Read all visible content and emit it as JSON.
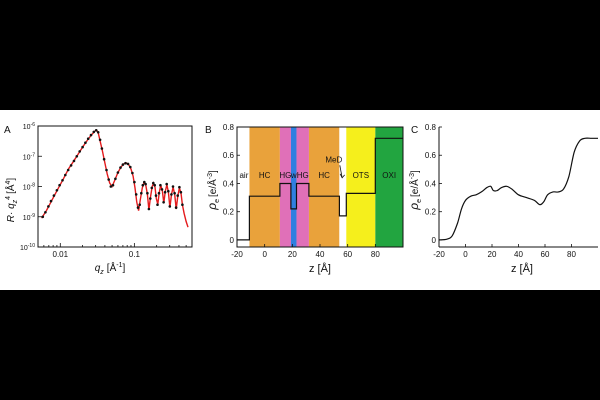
{
  "chart_data": [
    {
      "panel_label": "A",
      "type": "scatter",
      "title": "",
      "xlabel": "q",
      "xlabel_sub": "z",
      "xlabel_unit": "[Å",
      "xlabel_unit_sup": "-1",
      "xlabel_unit_close": "]",
      "ylabel": "R· q",
      "ylabel_sub": "z",
      "ylabel_sup": "4",
      "ylabel_unit": "[Å",
      "ylabel_unit_sup": "4",
      "ylabel_unit_close": "]",
      "x_scale": "log",
      "y_scale": "log",
      "xlim": [
        0.005,
        0.6
      ],
      "ylim": [
        1e-10,
        1e-06
      ],
      "xticks": [
        {
          "value": 0.01,
          "label": "0.01"
        },
        {
          "value": 0.1,
          "label": "0.1"
        }
      ],
      "yticks": [
        {
          "value": 1e-10,
          "mantissa": "10",
          "exp": "-10"
        },
        {
          "value": 1e-09,
          "mantissa": "10",
          "exp": "-9"
        },
        {
          "value": 1e-08,
          "mantissa": "10",
          "exp": "-8"
        },
        {
          "value": 1e-07,
          "mantissa": "10",
          "exp": "-7"
        },
        {
          "value": 1e-06,
          "mantissa": "10",
          "exp": "-6"
        }
      ],
      "series": [
        {
          "name": "data",
          "style": "points",
          "color": "#111111",
          "points": [
            [
              0.0058,
              1e-09
            ],
            [
              0.0063,
              1.4e-09
            ],
            [
              0.0069,
              2.2e-09
            ],
            [
              0.0075,
              3.3e-09
            ],
            [
              0.0082,
              5e-09
            ],
            [
              0.009,
              7.5e-09
            ],
            [
              0.0098,
              1.1e-08
            ],
            [
              0.0107,
              1.6e-08
            ],
            [
              0.0117,
              2.4e-08
            ],
            [
              0.0128,
              3.5e-08
            ],
            [
              0.014,
              5e-08
            ],
            [
              0.0153,
              7e-08
            ],
            [
              0.0167,
              1e-07
            ],
            [
              0.0183,
              1.45e-07
            ],
            [
              0.02,
              2e-07
            ],
            [
              0.0218,
              2.8e-07
            ],
            [
              0.0238,
              3.8e-07
            ],
            [
              0.026,
              5e-07
            ],
            [
              0.0283,
              6.4e-07
            ],
            [
              0.0305,
              7.2e-07
            ],
            [
              0.0325,
              6.2e-07
            ],
            [
              0.0345,
              3.5e-07
            ],
            [
              0.0365,
              1.8e-07
            ],
            [
              0.039,
              8e-08
            ],
            [
              0.042,
              3.5e-08
            ],
            [
              0.045,
              1.7e-08
            ],
            [
              0.048,
              1e-08
            ],
            [
              0.0515,
              1.1e-08
            ],
            [
              0.0555,
              1.8e-08
            ],
            [
              0.06,
              2.9e-08
            ],
            [
              0.065,
              4.2e-08
            ],
            [
              0.07,
              5.3e-08
            ],
            [
              0.076,
              5.9e-08
            ],
            [
              0.082,
              5.6e-08
            ],
            [
              0.088,
              4.4e-08
            ],
            [
              0.094,
              2.8e-08
            ],
            [
              0.1,
              1.4e-08
            ],
            [
              0.106,
              5.5e-09
            ],
            [
              0.112,
              2e-09
            ],
            [
              0.118,
              2.5e-09
            ],
            [
              0.124,
              6e-09
            ],
            [
              0.13,
              1.1e-08
            ],
            [
              0.136,
              1.4e-08
            ],
            [
              0.142,
              1.2e-08
            ],
            [
              0.15,
              6e-09
            ],
            [
              0.157,
              1.8e-09
            ],
            [
              0.164,
              4e-09
            ],
            [
              0.172,
              9e-09
            ],
            [
              0.18,
              1.3e-08
            ],
            [
              0.188,
              1.1e-08
            ],
            [
              0.196,
              5e-09
            ],
            [
              0.205,
              2.5e-09
            ],
            [
              0.215,
              6e-09
            ],
            [
              0.225,
              1.1e-08
            ],
            [
              0.236,
              8e-09
            ],
            [
              0.248,
              3e-09
            ],
            [
              0.26,
              6.5e-09
            ],
            [
              0.273,
              1.2e-08
            ],
            [
              0.287,
              7e-09
            ],
            [
              0.301,
              2.2e-09
            ],
            [
              0.316,
              5.5e-09
            ],
            [
              0.332,
              1e-08
            ],
            [
              0.349,
              6e-09
            ],
            [
              0.366,
              2e-09
            ],
            [
              0.385,
              5e-09
            ],
            [
              0.405,
              9.5e-09
            ],
            [
              0.425,
              6.5e-09
            ],
            [
              0.445,
              2.5e-09
            ]
          ]
        },
        {
          "name": "fit",
          "style": "line",
          "color": "#e41a1c",
          "points": [
            [
              0.0056,
              9e-10
            ],
            [
              0.0065,
              1.6e-09
            ],
            [
              0.0075,
              3.1e-09
            ],
            [
              0.009,
              7.2e-09
            ],
            [
              0.011,
              1.8e-08
            ],
            [
              0.013,
              3.9e-08
            ],
            [
              0.015,
              6.6e-08
            ],
            [
              0.0175,
              1.2e-07
            ],
            [
              0.02,
              2e-07
            ],
            [
              0.023,
              3.3e-07
            ],
            [
              0.026,
              4.9e-07
            ],
            [
              0.029,
              6.6e-07
            ],
            [
              0.0308,
              7.4e-07
            ],
            [
              0.0325,
              6e-07
            ],
            [
              0.0345,
              3.2e-07
            ],
            [
              0.037,
              1.5e-07
            ],
            [
              0.04,
              6e-08
            ],
            [
              0.043,
              2.6e-08
            ],
            [
              0.0465,
              1.3e-08
            ],
            [
              0.05,
              1e-08
            ],
            [
              0.055,
              1.7e-08
            ],
            [
              0.06,
              2.9e-08
            ],
            [
              0.066,
              4.4e-08
            ],
            [
              0.072,
              5.6e-08
            ],
            [
              0.078,
              6e-08
            ],
            [
              0.084,
              5.2e-08
            ],
            [
              0.09,
              3.8e-08
            ],
            [
              0.096,
              2.2e-08
            ],
            [
              0.102,
              9e-09
            ],
            [
              0.108,
              3e-09
            ],
            [
              0.114,
              1.6e-09
            ],
            [
              0.12,
              3.5e-09
            ],
            [
              0.128,
              9e-09
            ],
            [
              0.135,
              1.35e-08
            ],
            [
              0.142,
              1.2e-08
            ],
            [
              0.15,
              5.5e-09
            ],
            [
              0.157,
              1.7e-09
            ],
            [
              0.165,
              4.5e-09
            ],
            [
              0.174,
              1e-08
            ],
            [
              0.182,
              1.3e-08
            ],
            [
              0.19,
              9.5e-09
            ],
            [
              0.198,
              4e-09
            ],
            [
              0.207,
              2.6e-09
            ],
            [
              0.217,
              6.5e-09
            ],
            [
              0.227,
              1.1e-08
            ],
            [
              0.238,
              7.5e-09
            ],
            [
              0.25,
              2.8e-09
            ],
            [
              0.262,
              7e-09
            ],
            [
              0.275,
              1.15e-08
            ],
            [
              0.288,
              6.5e-09
            ],
            [
              0.302,
              2e-09
            ],
            [
              0.317,
              5.5e-09
            ],
            [
              0.333,
              9.5e-09
            ],
            [
              0.35,
              5.5e-09
            ],
            [
              0.367,
              1.8e-09
            ],
            [
              0.386,
              4.8e-09
            ],
            [
              0.406,
              9e-09
            ],
            [
              0.426,
              6e-09
            ],
            [
              0.445,
              2.5e-09
            ],
            [
              0.47,
              1.3e-09
            ],
            [
              0.5,
              7e-10
            ],
            [
              0.53,
              4.5e-10
            ]
          ]
        }
      ]
    },
    {
      "panel_label": "B",
      "type": "line",
      "title": "",
      "xlabel": "z [Å]",
      "ylabel": "ρ",
      "ylabel_sub": "e",
      "ylabel_unit": "[e/Å",
      "ylabel_unit_sup": "-3",
      "ylabel_unit_close": "]",
      "xlim": [
        -20,
        100
      ],
      "ylim": [
        -0.05,
        0.8
      ],
      "xticks": [
        -20,
        0,
        20,
        40,
        60,
        80
      ],
      "yticks": [
        0,
        0.2,
        0.4,
        0.6,
        0.8
      ],
      "ytick_labels": [
        "0",
        "0.2",
        "0.4",
        "0.6",
        "0.8"
      ],
      "regions": [
        {
          "name": "air",
          "label": "air",
          "x0": -20,
          "x1": -11,
          "color": "#ffffff",
          "label_x": -15,
          "label_y": 0.44
        },
        {
          "name": "hc-left",
          "label": "HC",
          "x0": -11,
          "x1": 11,
          "color": "#e9a23b",
          "label_x": 0,
          "label_y": 0.44
        },
        {
          "name": "hg-left",
          "label": "HG",
          "x0": 11,
          "x1": 19,
          "color": "#e070b8",
          "label_x": 15,
          "label_y": 0.44
        },
        {
          "name": "w",
          "label": "w",
          "x0": 19,
          "x1": 23,
          "color": "#2f7fe0",
          "label_x": 21,
          "label_y": 0.44
        },
        {
          "name": "hg-right",
          "label": "HG",
          "x0": 23,
          "x1": 32,
          "color": "#e070b8",
          "label_x": 27.5,
          "label_y": 0.44
        },
        {
          "name": "hc-right",
          "label": "HC",
          "x0": 32,
          "x1": 54,
          "color": "#e9a23b",
          "label_x": 43,
          "label_y": 0.44
        },
        {
          "name": "med",
          "label": "",
          "x0": 54,
          "x1": 59,
          "color": "#ffffff",
          "label_x": 56.5,
          "label_y": 0.44
        },
        {
          "name": "ots",
          "label": "OTS",
          "x0": 59,
          "x1": 80,
          "color": "#f5ef1c",
          "label_x": 69.5,
          "label_y": 0.44
        },
        {
          "name": "oxi",
          "label": "OXI",
          "x0": 80,
          "x1": 100,
          "color": "#22a540",
          "label_x": 90,
          "label_y": 0.44
        }
      ],
      "annotations": [
        {
          "name": "med-label",
          "text": "MeD",
          "x": 50,
          "y": 0.55,
          "arrow_to": [
            56,
            0.44
          ]
        }
      ],
      "series": [
        {
          "name": "box-profile",
          "color": "#111111",
          "points": [
            [
              -20,
              0
            ],
            [
              -11,
              0
            ],
            [
              -11,
              0.31
            ],
            [
              11,
              0.31
            ],
            [
              11,
              0.4
            ],
            [
              19,
              0.4
            ],
            [
              19,
              0.22
            ],
            [
              23,
              0.22
            ],
            [
              23,
              0.4
            ],
            [
              32,
              0.4
            ],
            [
              32,
              0.31
            ],
            [
              54,
              0.31
            ],
            [
              54,
              0.17
            ],
            [
              59,
              0.17
            ],
            [
              59,
              0.33
            ],
            [
              80,
              0.33
            ],
            [
              80,
              0.72
            ],
            [
              100,
              0.72
            ]
          ]
        }
      ]
    },
    {
      "panel_label": "C",
      "type": "line",
      "title": "",
      "xlabel": "z [Å]",
      "ylabel": "ρ",
      "ylabel_sub": "e",
      "ylabel_unit": "[e/Å",
      "ylabel_unit_sup": "-3",
      "ylabel_unit_close": "]",
      "xlim": [
        -20,
        100
      ],
      "ylim": [
        -0.05,
        0.8
      ],
      "xticks": [
        -20,
        0,
        20,
        40,
        60,
        80
      ],
      "yticks": [
        0,
        0.2,
        0.4,
        0.6,
        0.8
      ],
      "ytick_labels": [
        "0",
        "0.2",
        "0.4",
        "0.6",
        "0.8"
      ],
      "series": [
        {
          "name": "smooth-profile",
          "color": "#111111",
          "points": [
            [
              -20,
              0
            ],
            [
              -14,
              0.005
            ],
            [
              -10,
              0.03
            ],
            [
              -6,
              0.12
            ],
            [
              -3,
              0.22
            ],
            [
              0,
              0.28
            ],
            [
              4,
              0.31
            ],
            [
              8,
              0.32
            ],
            [
              12,
              0.34
            ],
            [
              16,
              0.37
            ],
            [
              19,
              0.38
            ],
            [
              21,
              0.35
            ],
            [
              24,
              0.35
            ],
            [
              27,
              0.37
            ],
            [
              31,
              0.38
            ],
            [
              35,
              0.36
            ],
            [
              40,
              0.32
            ],
            [
              46,
              0.3
            ],
            [
              52,
              0.28
            ],
            [
              56,
              0.25
            ],
            [
              59,
              0.27
            ],
            [
              62,
              0.32
            ],
            [
              66,
              0.34
            ],
            [
              70,
              0.34
            ],
            [
              74,
              0.36
            ],
            [
              78,
              0.45
            ],
            [
              82,
              0.62
            ],
            [
              86,
              0.7
            ],
            [
              90,
              0.72
            ],
            [
              95,
              0.72
            ],
            [
              100,
              0.72
            ]
          ]
        }
      ]
    }
  ]
}
